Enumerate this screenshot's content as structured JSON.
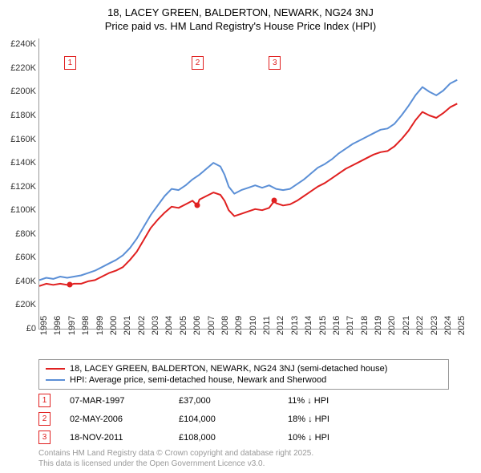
{
  "title_line1": "18, LACEY GREEN, BALDERTON, NEWARK, NG24 3NJ",
  "title_line2": "Price paid vs. HM Land Registry's House Price Index (HPI)",
  "chart": {
    "type": "line",
    "x_years": [
      1995,
      1996,
      1997,
      1998,
      1999,
      2000,
      2001,
      2002,
      2003,
      2004,
      2005,
      2006,
      2007,
      2008,
      2009,
      2010,
      2011,
      2012,
      2013,
      2014,
      2015,
      2016,
      2017,
      2018,
      2019,
      2020,
      2021,
      2022,
      2023,
      2024,
      2025
    ],
    "xlim": [
      1995,
      2025.5
    ],
    "ylim": [
      0,
      245000
    ],
    "ytick_step": 20000,
    "ytick_labels": [
      "£0",
      "£20K",
      "£40K",
      "£60K",
      "£80K",
      "£100K",
      "£120K",
      "£140K",
      "£160K",
      "£180K",
      "£200K",
      "£220K",
      "£240K"
    ],
    "series": {
      "subject": {
        "color": "#e02020",
        "width": 2,
        "label": "18, LACEY GREEN, BALDERTON, NEWARK, NG24 3NJ (semi-detached house)",
        "data": [
          [
            1995,
            36000
          ],
          [
            1995.5,
            38000
          ],
          [
            1996,
            37000
          ],
          [
            1996.5,
            38000
          ],
          [
            1997,
            37000
          ],
          [
            1997.18,
            37000
          ],
          [
            1997.5,
            38000
          ],
          [
            1998,
            38000
          ],
          [
            1998.5,
            40000
          ],
          [
            1999,
            41000
          ],
          [
            1999.5,
            44000
          ],
          [
            2000,
            47000
          ],
          [
            2000.5,
            49000
          ],
          [
            2001,
            52000
          ],
          [
            2001.5,
            58000
          ],
          [
            2002,
            65000
          ],
          [
            2002.5,
            75000
          ],
          [
            2003,
            85000
          ],
          [
            2003.5,
            92000
          ],
          [
            2004,
            98000
          ],
          [
            2004.5,
            103000
          ],
          [
            2005,
            102000
          ],
          [
            2005.5,
            105000
          ],
          [
            2006,
            108000
          ],
          [
            2006.34,
            104000
          ],
          [
            2006.5,
            109000
          ],
          [
            2007,
            112000
          ],
          [
            2007.5,
            115000
          ],
          [
            2008,
            113000
          ],
          [
            2008.3,
            108000
          ],
          [
            2008.6,
            100000
          ],
          [
            2009,
            95000
          ],
          [
            2009.5,
            97000
          ],
          [
            2010,
            99000
          ],
          [
            2010.5,
            101000
          ],
          [
            2011,
            100000
          ],
          [
            2011.5,
            102000
          ],
          [
            2011.88,
            108000
          ],
          [
            2012,
            106000
          ],
          [
            2012.5,
            104000
          ],
          [
            2013,
            105000
          ],
          [
            2013.5,
            108000
          ],
          [
            2014,
            112000
          ],
          [
            2014.5,
            116000
          ],
          [
            2015,
            120000
          ],
          [
            2015.5,
            123000
          ],
          [
            2016,
            127000
          ],
          [
            2016.5,
            131000
          ],
          [
            2017,
            135000
          ],
          [
            2017.5,
            138000
          ],
          [
            2018,
            141000
          ],
          [
            2018.5,
            144000
          ],
          [
            2019,
            147000
          ],
          [
            2019.5,
            149000
          ],
          [
            2020,
            150000
          ],
          [
            2020.5,
            154000
          ],
          [
            2021,
            160000
          ],
          [
            2021.5,
            167000
          ],
          [
            2022,
            176000
          ],
          [
            2022.5,
            183000
          ],
          [
            2023,
            180000
          ],
          [
            2023.5,
            178000
          ],
          [
            2024,
            182000
          ],
          [
            2024.5,
            187000
          ],
          [
            2025,
            190000
          ]
        ]
      },
      "hpi": {
        "color": "#5b8fd6",
        "width": 2,
        "label": "HPI: Average price, semi-detached house, Newark and Sherwood",
        "data": [
          [
            1995,
            41000
          ],
          [
            1995.5,
            43000
          ],
          [
            1996,
            42000
          ],
          [
            1996.5,
            44000
          ],
          [
            1997,
            43000
          ],
          [
            1997.5,
            44000
          ],
          [
            1998,
            45000
          ],
          [
            1998.5,
            47000
          ],
          [
            1999,
            49000
          ],
          [
            1999.5,
            52000
          ],
          [
            2000,
            55000
          ],
          [
            2000.5,
            58000
          ],
          [
            2001,
            62000
          ],
          [
            2001.5,
            68000
          ],
          [
            2002,
            76000
          ],
          [
            2002.5,
            86000
          ],
          [
            2003,
            96000
          ],
          [
            2003.5,
            104000
          ],
          [
            2004,
            112000
          ],
          [
            2004.5,
            118000
          ],
          [
            2005,
            117000
          ],
          [
            2005.5,
            121000
          ],
          [
            2006,
            126000
          ],
          [
            2006.5,
            130000
          ],
          [
            2007,
            135000
          ],
          [
            2007.5,
            140000
          ],
          [
            2008,
            137000
          ],
          [
            2008.3,
            130000
          ],
          [
            2008.6,
            120000
          ],
          [
            2009,
            114000
          ],
          [
            2009.5,
            117000
          ],
          [
            2010,
            119000
          ],
          [
            2010.5,
            121000
          ],
          [
            2011,
            119000
          ],
          [
            2011.5,
            121000
          ],
          [
            2012,
            118000
          ],
          [
            2012.5,
            117000
          ],
          [
            2013,
            118000
          ],
          [
            2013.5,
            122000
          ],
          [
            2014,
            126000
          ],
          [
            2014.5,
            131000
          ],
          [
            2015,
            136000
          ],
          [
            2015.5,
            139000
          ],
          [
            2016,
            143000
          ],
          [
            2016.5,
            148000
          ],
          [
            2017,
            152000
          ],
          [
            2017.5,
            156000
          ],
          [
            2018,
            159000
          ],
          [
            2018.5,
            162000
          ],
          [
            2019,
            165000
          ],
          [
            2019.5,
            168000
          ],
          [
            2020,
            169000
          ],
          [
            2020.5,
            173000
          ],
          [
            2021,
            180000
          ],
          [
            2021.5,
            188000
          ],
          [
            2022,
            197000
          ],
          [
            2022.5,
            204000
          ],
          [
            2023,
            200000
          ],
          [
            2023.5,
            197000
          ],
          [
            2024,
            201000
          ],
          [
            2024.5,
            207000
          ],
          [
            2025,
            210000
          ]
        ]
      }
    },
    "markers": [
      {
        "n": "1",
        "year": 1997.18,
        "value": 37000,
        "top": 22
      },
      {
        "n": "2",
        "year": 2006.34,
        "value": 104000,
        "top": 22
      },
      {
        "n": "3",
        "year": 2011.88,
        "value": 108000,
        "top": 22
      }
    ],
    "background_color": "#ffffff"
  },
  "legend": {
    "items": [
      {
        "color": "#e02020",
        "label_key": "chart.series.subject.label"
      },
      {
        "color": "#5b8fd6",
        "label_key": "chart.series.hpi.label"
      }
    ]
  },
  "sales": [
    {
      "n": "1",
      "date": "07-MAR-1997",
      "price": "£37,000",
      "hpi": "11% ↓ HPI"
    },
    {
      "n": "2",
      "date": "02-MAY-2006",
      "price": "£104,000",
      "hpi": "18% ↓ HPI"
    },
    {
      "n": "3",
      "date": "18-NOV-2011",
      "price": "£108,000",
      "hpi": "10% ↓ HPI"
    }
  ],
  "footer_line1": "Contains HM Land Registry data © Crown copyright and database right 2025.",
  "footer_line2": "This data is licensed under the Open Government Licence v3.0."
}
